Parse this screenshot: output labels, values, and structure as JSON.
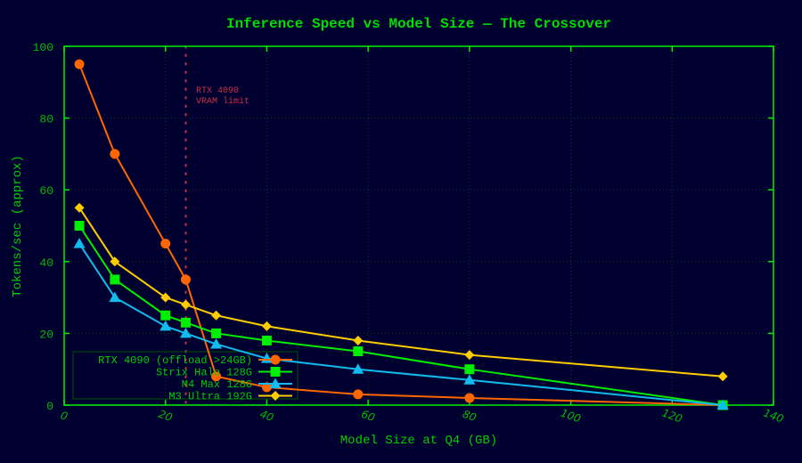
{
  "chart_data": {
    "type": "line",
    "title": "Inference Speed vs Model Size — The Crossover",
    "xlabel": "Model Size at Q4 (GB)",
    "ylabel": "Tokens/sec (approx)",
    "xlim": [
      0,
      140
    ],
    "ylim": [
      0,
      100
    ],
    "xticks": [
      0,
      20,
      40,
      60,
      80,
      100,
      120,
      140
    ],
    "yticks": [
      0,
      20,
      40,
      60,
      80,
      100
    ],
    "grid": true,
    "legend_position": "lower left",
    "x": [
      3,
      10,
      20,
      24,
      30,
      40,
      58,
      80,
      130
    ],
    "series": [
      {
        "name": "RTX 4090 (offload >24GB)",
        "color": "#ff6600",
        "marker": "circle",
        "values": [
          95,
          70,
          45,
          35,
          8,
          5,
          3,
          2,
          0
        ]
      },
      {
        "name": "Strix Halo 128G",
        "color": "#00ee00",
        "marker": "square",
        "values": [
          50,
          35,
          25,
          23,
          20,
          18,
          15,
          10,
          0
        ]
      },
      {
        "name": "M4 Max 128G",
        "color": "#11bbee",
        "marker": "triangle",
        "values": [
          45,
          30,
          22,
          20,
          17,
          13,
          10,
          7,
          0
        ]
      },
      {
        "name": "M3 Ultra 192G",
        "color": "#ffcc00",
        "marker": "diamond",
        "values": [
          55,
          40,
          30,
          28,
          25,
          22,
          18,
          14,
          8
        ]
      }
    ],
    "annotations": [
      {
        "type": "vline",
        "x": 24,
        "color": "#cc3344",
        "style": "dotted",
        "label_lines": [
          "RTX 4090",
          "VRAM limit"
        ]
      }
    ]
  }
}
